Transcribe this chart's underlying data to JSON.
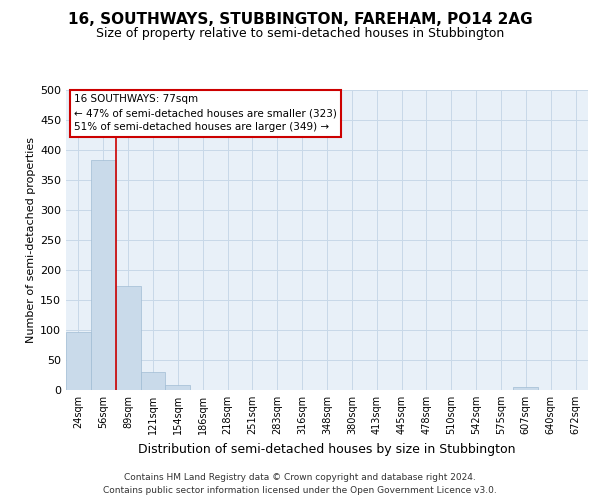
{
  "title1": "16, SOUTHWAYS, STUBBINGTON, FAREHAM, PO14 2AG",
  "title2": "Size of property relative to semi-detached houses in Stubbington",
  "xlabel": "Distribution of semi-detached houses by size in Stubbington",
  "ylabel": "Number of semi-detached properties",
  "footer1": "Contains HM Land Registry data © Crown copyright and database right 2024.",
  "footer2": "Contains public sector information licensed under the Open Government Licence v3.0.",
  "categories": [
    "24sqm",
    "56sqm",
    "89sqm",
    "121sqm",
    "154sqm",
    "186sqm",
    "218sqm",
    "251sqm",
    "283sqm",
    "316sqm",
    "348sqm",
    "380sqm",
    "413sqm",
    "445sqm",
    "478sqm",
    "510sqm",
    "542sqm",
    "575sqm",
    "607sqm",
    "640sqm",
    "672sqm"
  ],
  "values": [
    97,
    383,
    174,
    30,
    9,
    0,
    0,
    0,
    0,
    0,
    0,
    0,
    0,
    0,
    0,
    0,
    0,
    0,
    5,
    0,
    0
  ],
  "bar_color": "#c9daea",
  "bar_edgecolor": "#a0bcd4",
  "grid_color": "#c8d8e8",
  "property_line_x": 1.5,
  "property_label": "16 SOUTHWAYS: 77sqm",
  "annotation_smaller": "← 47% of semi-detached houses are smaller (323)",
  "annotation_larger": "51% of semi-detached houses are larger (349) →",
  "annotation_box_color": "#ffffff",
  "annotation_box_edgecolor": "#cc0000",
  "property_line_color": "#cc0000",
  "ylim": [
    0,
    500
  ],
  "yticks": [
    0,
    50,
    100,
    150,
    200,
    250,
    300,
    350,
    400,
    450,
    500
  ],
  "background_color": "#e8f0f8",
  "title1_fontsize": 11,
  "title2_fontsize": 9,
  "xlabel_fontsize": 9,
  "ylabel_fontsize": 8
}
